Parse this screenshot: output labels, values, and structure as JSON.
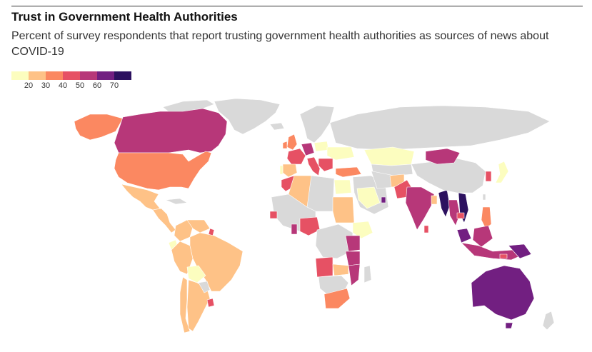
{
  "header": {
    "title": "Trust in Government Health Authorities",
    "subtitle": "Percent of survey respondents that report trusting government health authorities as sources of news about COVID-19"
  },
  "legend": {
    "ticks": [
      "20",
      "30",
      "40",
      "50",
      "60",
      "70"
    ],
    "colors": [
      "#fcfdbf",
      "#fec287",
      "#fb8861",
      "#e65164",
      "#b73779",
      "#721f81",
      "#2c115f"
    ]
  },
  "colors": {
    "no_data": "#d9d9d9",
    "border": "#ffffff"
  }
}
